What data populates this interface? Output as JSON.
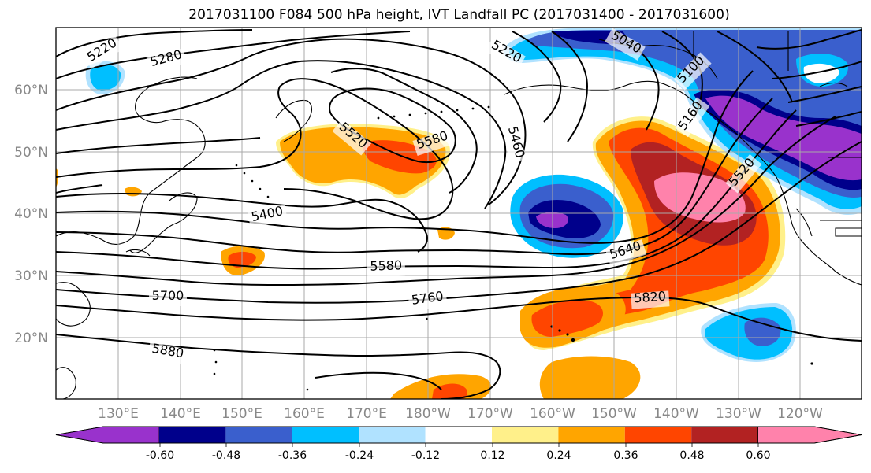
{
  "title": "2017031100 F084 500 hPa height, IVT Landfall PC (2017031400 - 2017031600)",
  "map": {
    "lat_labels": [
      "60°N",
      "50°N",
      "40°N",
      "30°N",
      "20°N"
    ],
    "lon_labels": [
      "130°E",
      "140°E",
      "150°E",
      "160°E",
      "170°E",
      "180°W",
      "170°W",
      "160°W",
      "150°W",
      "140°W",
      "130°W",
      "120°W"
    ],
    "contour_labels": [
      "5220",
      "5280",
      "5520",
      "5580",
      "5460",
      "5400",
      "5580",
      "5700",
      "5760",
      "5640",
      "5820",
      "5880",
      "5040",
      "5100",
      "5160",
      "5220",
      "5520"
    ]
  },
  "colorbar": {
    "colors": [
      "#9932cc",
      "#00008b",
      "#3a5fcd",
      "#00bfff",
      "#b0e2ff",
      "#ffffff",
      "#fff08a",
      "#ffa500",
      "#ff4500",
      "#b22222",
      "#ff82ab"
    ],
    "tick_labels": [
      "-0.60",
      "-0.48",
      "-0.36",
      "-0.24",
      "-0.12",
      "0.12",
      "0.24",
      "0.36",
      "0.48",
      "0.60"
    ]
  }
}
